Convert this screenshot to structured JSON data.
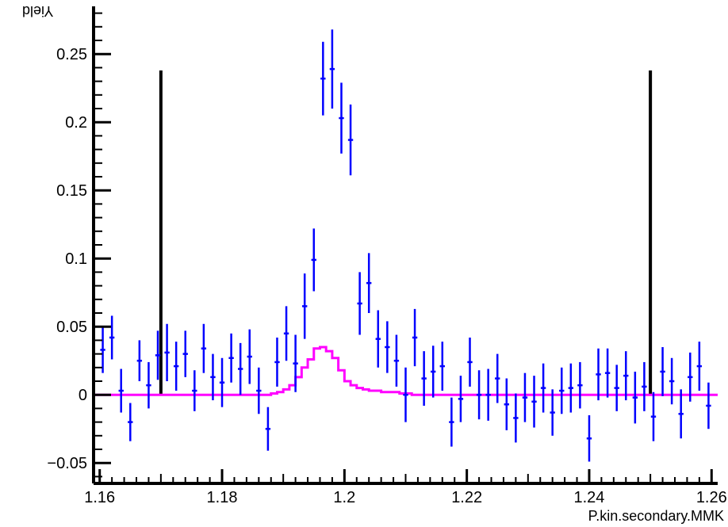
{
  "chart_data": {
    "type": "scatter",
    "title": "",
    "xlabel": "P.kin.secondary.MMK",
    "ylabel": "Yield",
    "xlim": [
      1.159,
      1.261
    ],
    "ylim": [
      -0.065,
      0.285
    ],
    "grid": false,
    "x_ticks": [
      "1.16",
      "1.18",
      "1.2",
      "1.22",
      "1.24",
      "1.26"
    ],
    "y_ticks": [
      "−0.05",
      "0",
      "0.05",
      "0.1",
      "0.15",
      "0.2",
      "0.25"
    ],
    "series": [
      {
        "type": "errorbar",
        "color": "#0000ff",
        "bin_width": 0.0015,
        "x": [
          1.1605,
          1.162,
          1.1635,
          1.165,
          1.1665,
          1.168,
          1.1695,
          1.171,
          1.1725,
          1.174,
          1.1755,
          1.177,
          1.1785,
          1.18,
          1.1815,
          1.183,
          1.1845,
          1.186,
          1.1875,
          1.189,
          1.1905,
          1.192,
          1.1935,
          1.195,
          1.1965,
          1.198,
          1.1995,
          1.201,
          1.2025,
          1.204,
          1.2055,
          1.207,
          1.2085,
          1.21,
          1.2115,
          1.213,
          1.2145,
          1.216,
          1.2175,
          1.219,
          1.2205,
          1.222,
          1.2235,
          1.225,
          1.2265,
          1.228,
          1.2295,
          1.231,
          1.2325,
          1.234,
          1.2355,
          1.237,
          1.2385,
          1.24,
          1.2415,
          1.243,
          1.2445,
          1.246,
          1.2475,
          1.249,
          1.2505,
          1.252,
          1.2535,
          1.255,
          1.2565,
          1.258,
          1.2595
        ],
        "y": [
          0.033,
          0.042,
          0.003,
          -0.02,
          0.025,
          0.007,
          0.029,
          0.031,
          0.021,
          0.03,
          0.003,
          0.034,
          0.013,
          0.009,
          0.027,
          0.019,
          0.028,
          0.003,
          -0.025,
          0.024,
          0.045,
          0.023,
          0.065,
          0.099,
          0.232,
          0.239,
          0.203,
          0.187,
          0.067,
          0.082,
          0.041,
          0.035,
          0.025,
          0.0,
          0.042,
          0.012,
          0.017,
          0.021,
          -0.02,
          -0.003,
          0.024,
          0.0,
          0.0,
          0.012,
          -0.007,
          -0.017,
          -0.002,
          -0.005,
          0.005,
          -0.013,
          0.003,
          0.005,
          0.007,
          -0.032,
          0.015,
          0.016,
          0.005,
          0.014,
          -0.002,
          0.006,
          -0.016,
          0.017,
          0.01,
          -0.014,
          0.013,
          0.021,
          -0.008
        ],
        "err": [
          0.017,
          0.016,
          0.016,
          0.014,
          0.015,
          0.017,
          0.018,
          0.021,
          0.018,
          0.017,
          0.015,
          0.018,
          0.017,
          0.018,
          0.018,
          0.019,
          0.02,
          0.017,
          0.016,
          0.018,
          0.02,
          0.021,
          0.024,
          0.023,
          0.027,
          0.029,
          0.026,
          0.026,
          0.023,
          0.022,
          0.021,
          0.019,
          0.019,
          0.02,
          0.021,
          0.02,
          0.019,
          0.018,
          0.018,
          0.017,
          0.018,
          0.018,
          0.019,
          0.018,
          0.019,
          0.018,
          0.018,
          0.019,
          0.018,
          0.017,
          0.017,
          0.018,
          0.017,
          0.017,
          0.019,
          0.018,
          0.017,
          0.018,
          0.019,
          0.018,
          0.018,
          0.018,
          0.017,
          0.018,
          0.018,
          0.018,
          0.017
        ]
      },
      {
        "type": "step",
        "color": "#ff00ff",
        "bin_width": 0.001,
        "x": [
          1.1885,
          1.1895,
          1.1905,
          1.1915,
          1.1925,
          1.1935,
          1.1945,
          1.1955,
          1.1965,
          1.1975,
          1.1985,
          1.1995,
          1.2005,
          1.2015,
          1.2025,
          1.2035,
          1.2045,
          1.2055,
          1.2065,
          1.2075,
          1.2085,
          1.2095,
          1.2105
        ],
        "y": [
          0.001,
          0.002,
          0.004,
          0.007,
          0.013,
          0.02,
          0.026,
          0.034,
          0.035,
          0.032,
          0.027,
          0.018,
          0.01,
          0.007,
          0.005,
          0.004,
          0.003,
          0.003,
          0.002,
          0.002,
          0.002,
          0.001,
          0.001
        ],
        "baseline": 0.0
      }
    ],
    "cut_lines": [
      {
        "x": 1.17,
        "y_top": 0.238,
        "color": "#000000"
      },
      {
        "x": 1.25,
        "y_top": 0.238,
        "color": "#000000"
      }
    ]
  }
}
